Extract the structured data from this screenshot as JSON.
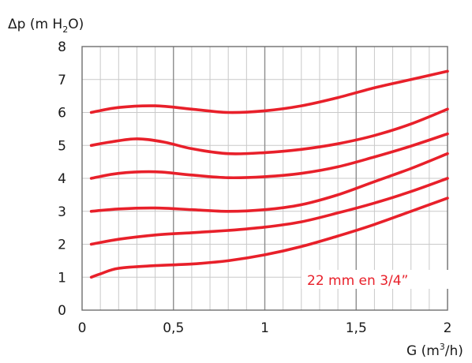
{
  "chart_data": {
    "type": "line",
    "ylabel": {
      "pre": "Δp (m H",
      "sub": "2",
      "post": "O)"
    },
    "xlabel": {
      "pre": "G (m",
      "sup": "3",
      "post": "/h)"
    },
    "annotation": "22 mm en 3/4”",
    "xlim": [
      0,
      2
    ],
    "ylim": [
      0,
      8
    ],
    "x_ticks": [
      0,
      0.5,
      1,
      1.5,
      2
    ],
    "x_tick_labels": [
      "0",
      "0,5",
      "1",
      "1,5",
      "2"
    ],
    "y_ticks": [
      0,
      1,
      2,
      3,
      4,
      5,
      6,
      7,
      8
    ],
    "y_tick_labels": [
      "0",
      "1",
      "2",
      "3",
      "4",
      "5",
      "6",
      "7",
      "8"
    ],
    "grid": true,
    "series_color": "#e8202a",
    "grid_minor_color": "#c9c9c9",
    "grid_major_color": "#8c8c8c",
    "series": [
      {
        "x": [
          0.05,
          0.2,
          0.4,
          0.6,
          0.8,
          1.0,
          1.2,
          1.4,
          1.6,
          1.8,
          2.0
        ],
        "values": [
          6.0,
          6.15,
          6.2,
          6.1,
          6.0,
          6.05,
          6.2,
          6.45,
          6.75,
          7.0,
          7.25
        ]
      },
      {
        "x": [
          0.05,
          0.15,
          0.3,
          0.45,
          0.6,
          0.8,
          1.0,
          1.2,
          1.4,
          1.6,
          1.8,
          2.0
        ],
        "values": [
          5.0,
          5.1,
          5.2,
          5.1,
          4.9,
          4.75,
          4.78,
          4.88,
          5.05,
          5.3,
          5.65,
          6.1
        ]
      },
      {
        "x": [
          0.05,
          0.2,
          0.4,
          0.6,
          0.8,
          1.0,
          1.2,
          1.4,
          1.6,
          1.8,
          2.0
        ],
        "values": [
          4.0,
          4.15,
          4.2,
          4.1,
          4.02,
          4.05,
          4.15,
          4.35,
          4.65,
          4.98,
          5.35
        ]
      },
      {
        "x": [
          0.05,
          0.2,
          0.4,
          0.6,
          0.8,
          1.0,
          1.2,
          1.4,
          1.6,
          1.8,
          2.0
        ],
        "values": [
          3.0,
          3.07,
          3.1,
          3.05,
          3.0,
          3.05,
          3.2,
          3.5,
          3.9,
          4.3,
          4.75
        ]
      },
      {
        "x": [
          0.05,
          0.2,
          0.4,
          0.6,
          0.8,
          1.0,
          1.2,
          1.4,
          1.6,
          1.8,
          2.0
        ],
        "values": [
          2.0,
          2.15,
          2.28,
          2.35,
          2.42,
          2.52,
          2.68,
          2.95,
          3.25,
          3.6,
          4.0
        ]
      },
      {
        "x": [
          0.05,
          0.1,
          0.2,
          0.4,
          0.6,
          0.8,
          1.0,
          1.2,
          1.4,
          1.6,
          1.8,
          2.0
        ],
        "values": [
          1.0,
          1.1,
          1.27,
          1.35,
          1.4,
          1.5,
          1.68,
          1.93,
          2.25,
          2.6,
          3.0,
          3.4
        ]
      }
    ]
  }
}
